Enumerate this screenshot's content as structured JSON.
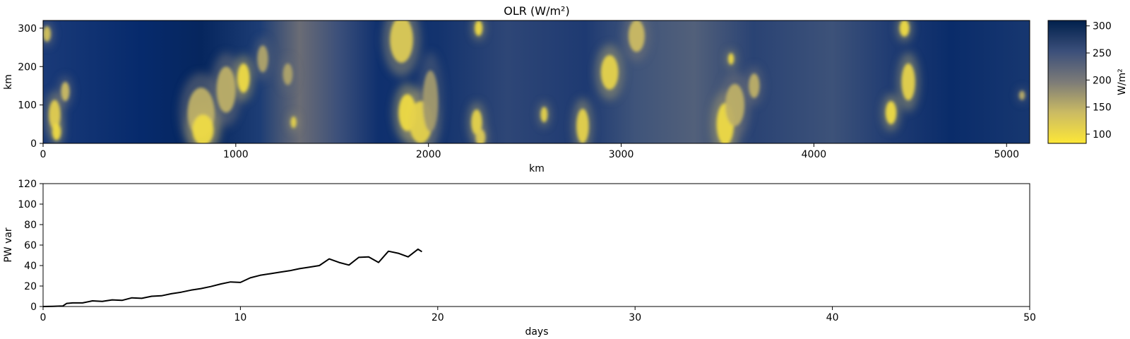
{
  "chart_data": [
    {
      "type": "heatmap",
      "title": "OLR (W/m²)",
      "xlabel": "km",
      "ylabel": "km",
      "xlim": [
        0,
        5120
      ],
      "ylim": [
        0,
        320
      ],
      "x_ticks": [
        "0",
        "1000",
        "2000",
        "3000",
        "4000",
        "5000"
      ],
      "y_ticks": [
        "0",
        "100",
        "200",
        "300"
      ],
      "colormap": "cividis_r",
      "colors": {
        "low": "#fde737",
        "mid": "#7c7b78",
        "high": "#00204c"
      },
      "colorbar": {
        "label": "W/m²",
        "range": [
          83,
          310
        ],
        "ticks": [
          "100",
          "150",
          "200",
          "250",
          "300"
        ]
      },
      "cold_cloud_cores": [
        {
          "x": 20,
          "y": 285,
          "rx": 20,
          "ry": 20,
          "olr": 130
        },
        {
          "x": 60,
          "y": 75,
          "rx": 30,
          "ry": 38,
          "olr": 115
        },
        {
          "x": 70,
          "y": 30,
          "rx": 22,
          "ry": 22,
          "olr": 100
        },
        {
          "x": 115,
          "y": 135,
          "rx": 22,
          "ry": 25,
          "olr": 140
        },
        {
          "x": 820,
          "y": 80,
          "rx": 70,
          "ry": 65,
          "olr": 150
        },
        {
          "x": 830,
          "y": 35,
          "rx": 55,
          "ry": 40,
          "olr": 100
        },
        {
          "x": 950,
          "y": 140,
          "rx": 50,
          "ry": 60,
          "olr": 150
        },
        {
          "x": 1040,
          "y": 170,
          "rx": 32,
          "ry": 38,
          "olr": 100
        },
        {
          "x": 1140,
          "y": 220,
          "rx": 28,
          "ry": 35,
          "olr": 160
        },
        {
          "x": 1270,
          "y": 180,
          "rx": 25,
          "ry": 28,
          "olr": 160
        },
        {
          "x": 1300,
          "y": 55,
          "rx": 15,
          "ry": 15,
          "olr": 110
        },
        {
          "x": 1860,
          "y": 270,
          "rx": 60,
          "ry": 60,
          "olr": 120
        },
        {
          "x": 1890,
          "y": 80,
          "rx": 45,
          "ry": 48,
          "olr": 100
        },
        {
          "x": 1960,
          "y": 55,
          "rx": 60,
          "ry": 55,
          "olr": 110
        },
        {
          "x": 2010,
          "y": 110,
          "rx": 40,
          "ry": 80,
          "olr": 170
        },
        {
          "x": 2250,
          "y": 55,
          "rx": 28,
          "ry": 33,
          "olr": 110
        },
        {
          "x": 2270,
          "y": 15,
          "rx": 25,
          "ry": 22,
          "olr": 120
        },
        {
          "x": 2260,
          "y": 300,
          "rx": 20,
          "ry": 20,
          "olr": 100
        },
        {
          "x": 2600,
          "y": 75,
          "rx": 18,
          "ry": 20,
          "olr": 110
        },
        {
          "x": 2800,
          "y": 45,
          "rx": 32,
          "ry": 45,
          "olr": 110
        },
        {
          "x": 2940,
          "y": 185,
          "rx": 45,
          "ry": 45,
          "olr": 110
        },
        {
          "x": 3080,
          "y": 280,
          "rx": 42,
          "ry": 42,
          "olr": 140
        },
        {
          "x": 3540,
          "y": 50,
          "rx": 45,
          "ry": 55,
          "olr": 100
        },
        {
          "x": 3590,
          "y": 100,
          "rx": 50,
          "ry": 55,
          "olr": 150
        },
        {
          "x": 3570,
          "y": 220,
          "rx": 15,
          "ry": 15,
          "olr": 100
        },
        {
          "x": 3690,
          "y": 150,
          "rx": 28,
          "ry": 32,
          "olr": 150
        },
        {
          "x": 4400,
          "y": 80,
          "rx": 28,
          "ry": 30,
          "olr": 100
        },
        {
          "x": 4490,
          "y": 160,
          "rx": 35,
          "ry": 48,
          "olr": 110
        },
        {
          "x": 4470,
          "y": 300,
          "rx": 25,
          "ry": 22,
          "olr": 100
        },
        {
          "x": 5080,
          "y": 125,
          "rx": 15,
          "ry": 12,
          "olr": 150
        }
      ]
    },
    {
      "type": "line",
      "title": "",
      "xlabel": "days",
      "ylabel": "PW var",
      "xlim": [
        0,
        50
      ],
      "ylim": [
        0,
        120
      ],
      "x_ticks": [
        "0",
        "10",
        "20",
        "30",
        "40",
        "50"
      ],
      "y_ticks": [
        "0",
        "20",
        "40",
        "60",
        "80",
        "100",
        "120"
      ],
      "grid": false,
      "series": [
        {
          "color": "#000000",
          "x": [
            0,
            0.5,
            1.0,
            1.2,
            1.5,
            2.0,
            2.5,
            3.0,
            3.5,
            4.0,
            4.5,
            5.0,
            5.5,
            6.0,
            6.5,
            7.0,
            7.5,
            8.0,
            8.5,
            9.0,
            9.5,
            10.0,
            10.5,
            11.0,
            11.5,
            12.0,
            12.5,
            13.0,
            13.5,
            14.0,
            14.5,
            15.0,
            15.5,
            16.0,
            16.5,
            17.0,
            17.5,
            18.0,
            18.5,
            19.0,
            19.2
          ],
          "y": [
            0,
            0.2,
            0.5,
            3.0,
            3.5,
            3.5,
            5.5,
            5.0,
            6.5,
            6.0,
            8.5,
            8.0,
            10.0,
            10.5,
            12.5,
            14.0,
            16.0,
            17.5,
            19.5,
            22.0,
            24.0,
            23.5,
            28.0,
            30.5,
            32.0,
            33.5,
            35.0,
            37.0,
            38.5,
            40.0,
            46.5,
            43.0,
            40.5,
            48.0,
            48.5,
            43.0,
            54.0,
            52.0,
            48.5,
            56.0,
            53.5
          ]
        }
      ]
    }
  ]
}
